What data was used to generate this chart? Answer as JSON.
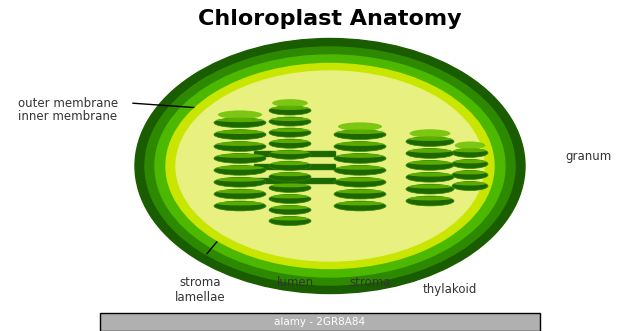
{
  "title": "Chloroplast Anatomy",
  "title_fontsize": 16,
  "title_fontweight": "bold",
  "background_color": "#ffffff",
  "labels": {
    "outer_membrane": "outer membrane",
    "inner_membrane": "inner membrane",
    "granum": "granum",
    "stroma_lamellae": "stroma\nlamellae",
    "lumen": "lumen",
    "stroma": "stroma",
    "thylakoid": "thylakoid",
    "watermark": "alamy - 2GR8A84"
  },
  "colors": {
    "outer_dark_green": "#1a5c00",
    "mid_green": "#2d8a00",
    "light_green": "#4db800",
    "yellow_green": "#c8e600",
    "inner_yellow": "#e8f080",
    "stroma_fill": "#c5e000",
    "thylakoid_dark": "#1e6600",
    "thylakoid_mid": "#2d8800",
    "thylakoid_light": "#5aaa00",
    "disc_top": "#6abf00",
    "black": "#000000",
    "gray_text": "#333333",
    "watermark_bg": "#c0c0c0"
  }
}
